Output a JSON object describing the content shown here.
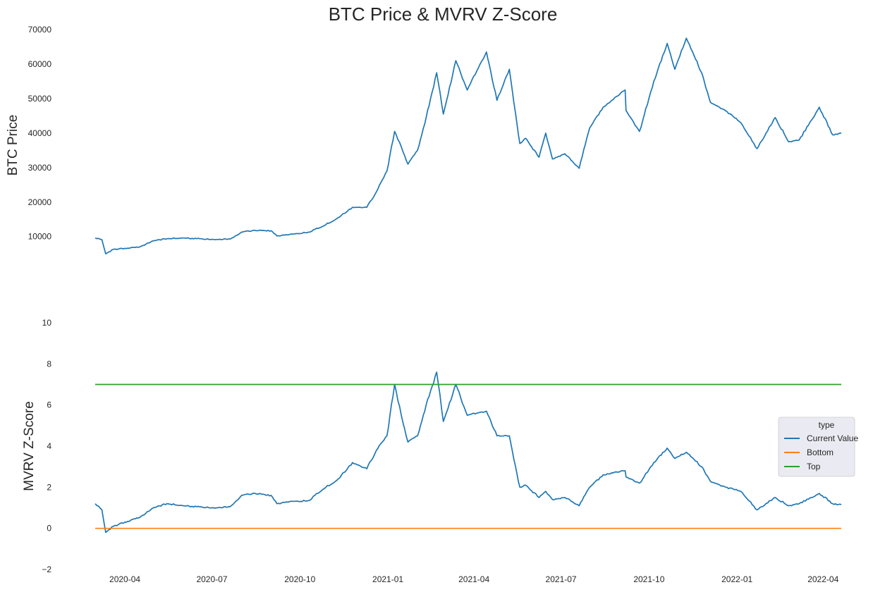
{
  "title": "BTC Price & MVRV Z-Score",
  "chart_data": [
    {
      "type": "line",
      "ylabel": "BTC  Price",
      "xlabel": "",
      "ylim": [
        3000,
        70000
      ],
      "yticks": [
        10000,
        20000,
        30000,
        40000,
        50000,
        60000,
        70000
      ],
      "x_ticks": [
        "2020-04",
        "2020-07",
        "2020-10",
        "2021-01",
        "2021-04",
        "2021-07",
        "2021-10",
        "2022-01",
        "2022-04"
      ],
      "xlim": [
        "2020-03-01",
        "2022-04-20"
      ],
      "grid": false,
      "series": [
        {
          "color": "#1f77b4",
          "points": [
            [
              "2020-03-01",
              9600
            ],
            [
              "2020-03-08",
              9100
            ],
            [
              "2020-03-12",
              5000
            ],
            [
              "2020-03-20",
              6300
            ],
            [
              "2020-04-01",
              6600
            ],
            [
              "2020-04-15",
              6900
            ],
            [
              "2020-05-01",
              8800
            ],
            [
              "2020-05-15",
              9400
            ],
            [
              "2020-06-01",
              9600
            ],
            [
              "2020-06-15",
              9400
            ],
            [
              "2020-07-01",
              9200
            ],
            [
              "2020-07-20",
              9300
            ],
            [
              "2020-08-01",
              11300
            ],
            [
              "2020-08-15",
              11800
            ],
            [
              "2020-09-01",
              11700
            ],
            [
              "2020-09-07",
              10200
            ],
            [
              "2020-09-20",
              10600
            ],
            [
              "2020-10-10",
              11300
            ],
            [
              "2020-10-25",
              13000
            ],
            [
              "2020-11-10",
              15500
            ],
            [
              "2020-11-25",
              18500
            ],
            [
              "2020-12-10",
              18500
            ],
            [
              "2020-12-20",
              23000
            ],
            [
              "2020-12-31",
              29000
            ],
            [
              "2021-01-08",
              40500
            ],
            [
              "2021-01-15",
              36000
            ],
            [
              "2021-01-22",
              31000
            ],
            [
              "2021-02-01",
              35000
            ],
            [
              "2021-02-10",
              44500
            ],
            [
              "2021-02-21",
              57500
            ],
            [
              "2021-02-28",
              45500
            ],
            [
              "2021-03-13",
              61000
            ],
            [
              "2021-03-25",
              52500
            ],
            [
              "2021-04-14",
              63500
            ],
            [
              "2021-04-25",
              49500
            ],
            [
              "2021-05-08",
              58500
            ],
            [
              "2021-05-19",
              37000
            ],
            [
              "2021-05-25",
              38500
            ],
            [
              "2021-06-08",
              33000
            ],
            [
              "2021-06-15",
              40000
            ],
            [
              "2021-06-22",
              32500
            ],
            [
              "2021-07-05",
              34000
            ],
            [
              "2021-07-20",
              29800
            ],
            [
              "2021-07-31",
              41500
            ],
            [
              "2021-08-14",
              47500
            ],
            [
              "2021-08-23",
              49500
            ],
            [
              "2021-09-06",
              52500
            ],
            [
              "2021-09-07",
              46500
            ],
            [
              "2021-09-21",
              40500
            ],
            [
              "2021-10-06",
              55000
            ],
            [
              "2021-10-20",
              66000
            ],
            [
              "2021-10-28",
              58500
            ],
            [
              "2021-11-09",
              67500
            ],
            [
              "2021-11-25",
              57500
            ],
            [
              "2021-12-04",
              49000
            ],
            [
              "2021-12-20",
              46500
            ],
            [
              "2022-01-05",
              43000
            ],
            [
              "2022-01-22",
              35500
            ],
            [
              "2022-02-10",
              44500
            ],
            [
              "2022-02-24",
              37500
            ],
            [
              "2022-03-07",
              38000
            ],
            [
              "2022-03-28",
              47500
            ],
            [
              "2022-04-11",
              39500
            ],
            [
              "2022-04-20",
              40000
            ]
          ]
        }
      ]
    },
    {
      "type": "line",
      "ylabel": "MVRV Z-Score",
      "xlabel": "",
      "ylim": [
        -2,
        10
      ],
      "yticks": [
        -2,
        0,
        2,
        4,
        6,
        8,
        10
      ],
      "x_ticks": [
        "2020-04",
        "2020-07",
        "2020-10",
        "2021-01",
        "2021-04",
        "2021-07",
        "2021-10",
        "2022-01",
        "2022-04"
      ],
      "xlim": [
        "2020-03-01",
        "2022-04-20"
      ],
      "grid": false,
      "legend": {
        "title": "type",
        "placement": "right"
      },
      "series": [
        {
          "name": "Current Value",
          "color": "#1f77b4",
          "points": [
            [
              "2020-03-01",
              1.2
            ],
            [
              "2020-03-08",
              0.9
            ],
            [
              "2020-03-12",
              -0.2
            ],
            [
              "2020-03-20",
              0.1
            ],
            [
              "2020-04-01",
              0.3
            ],
            [
              "2020-04-15",
              0.5
            ],
            [
              "2020-05-01",
              1.0
            ],
            [
              "2020-05-15",
              1.2
            ],
            [
              "2020-06-01",
              1.1
            ],
            [
              "2020-06-15",
              1.05
            ],
            [
              "2020-07-01",
              1.0
            ],
            [
              "2020-07-20",
              1.05
            ],
            [
              "2020-08-01",
              1.6
            ],
            [
              "2020-08-15",
              1.7
            ],
            [
              "2020-09-01",
              1.6
            ],
            [
              "2020-09-07",
              1.2
            ],
            [
              "2020-09-20",
              1.3
            ],
            [
              "2020-10-10",
              1.35
            ],
            [
              "2020-10-25",
              1.9
            ],
            [
              "2020-11-10",
              2.4
            ],
            [
              "2020-11-25",
              3.2
            ],
            [
              "2020-12-10",
              2.9
            ],
            [
              "2020-12-20",
              3.8
            ],
            [
              "2020-12-31",
              4.5
            ],
            [
              "2021-01-08",
              7.0
            ],
            [
              "2021-01-15",
              5.5
            ],
            [
              "2021-01-22",
              4.2
            ],
            [
              "2021-02-01",
              4.5
            ],
            [
              "2021-02-10",
              6.0
            ],
            [
              "2021-02-21",
              7.6
            ],
            [
              "2021-02-28",
              5.2
            ],
            [
              "2021-03-13",
              7.0
            ],
            [
              "2021-03-25",
              5.5
            ],
            [
              "2021-04-14",
              5.7
            ],
            [
              "2021-04-25",
              4.5
            ],
            [
              "2021-05-08",
              4.5
            ],
            [
              "2021-05-19",
              2.0
            ],
            [
              "2021-05-25",
              2.1
            ],
            [
              "2021-06-08",
              1.5
            ],
            [
              "2021-06-15",
              1.8
            ],
            [
              "2021-06-22",
              1.4
            ],
            [
              "2021-07-05",
              1.5
            ],
            [
              "2021-07-20",
              1.1
            ],
            [
              "2021-07-31",
              2.0
            ],
            [
              "2021-08-14",
              2.6
            ],
            [
              "2021-08-23",
              2.7
            ],
            [
              "2021-09-06",
              2.8
            ],
            [
              "2021-09-07",
              2.5
            ],
            [
              "2021-09-21",
              2.2
            ],
            [
              "2021-10-06",
              3.2
            ],
            [
              "2021-10-20",
              3.9
            ],
            [
              "2021-10-28",
              3.4
            ],
            [
              "2021-11-09",
              3.7
            ],
            [
              "2021-11-25",
              3.0
            ],
            [
              "2021-12-04",
              2.3
            ],
            [
              "2021-12-20",
              2.0
            ],
            [
              "2022-01-05",
              1.8
            ],
            [
              "2022-01-22",
              0.9
            ],
            [
              "2022-02-10",
              1.5
            ],
            [
              "2022-02-24",
              1.1
            ],
            [
              "2022-03-07",
              1.2
            ],
            [
              "2022-03-28",
              1.7
            ],
            [
              "2022-04-11",
              1.2
            ],
            [
              "2022-04-20",
              1.15
            ]
          ]
        },
        {
          "name": "Bottom",
          "color": "#ff7f0e",
          "points": [
            [
              "2020-03-01",
              0
            ],
            [
              "2022-04-20",
              0
            ]
          ]
        },
        {
          "name": "Top",
          "color": "#2ca02c",
          "points": [
            [
              "2020-03-01",
              7
            ],
            [
              "2022-04-20",
              7
            ]
          ]
        }
      ]
    }
  ]
}
